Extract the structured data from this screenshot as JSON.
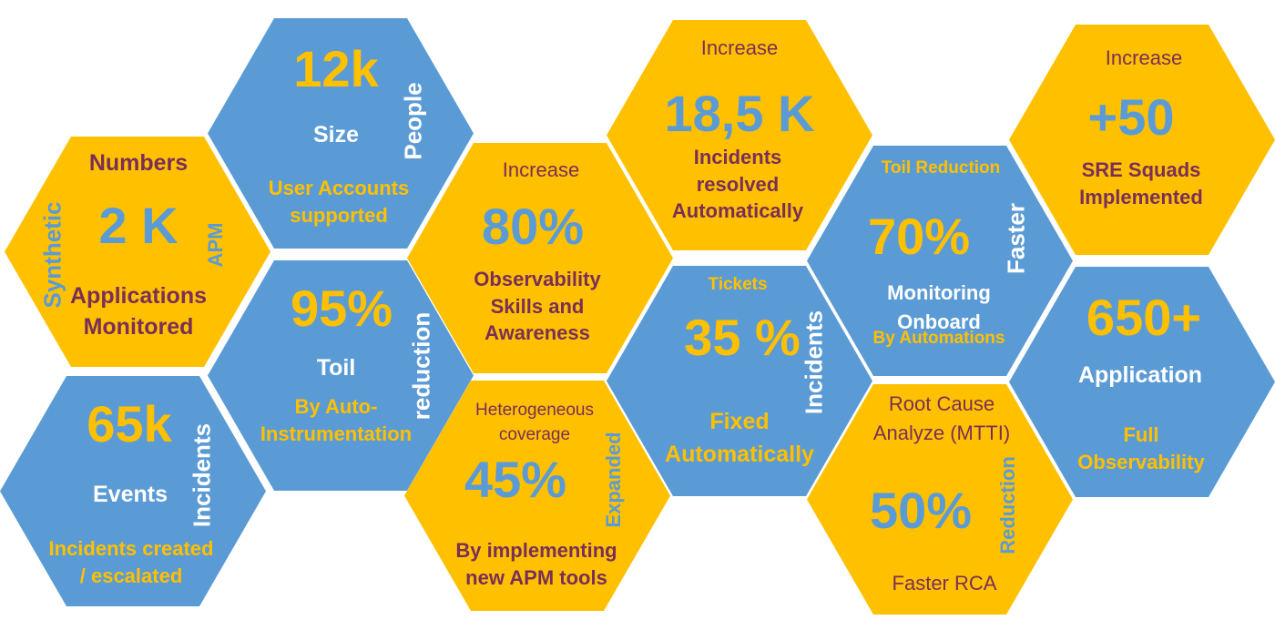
{
  "colors": {
    "blue": "#5b9bd5",
    "gold": "#ffc000",
    "white": "#ffffff",
    "text_dark": "#7a2f57"
  },
  "apm": {
    "top": "Numbers",
    "value": "2 K",
    "bottom_1": "Applications",
    "bottom_2": "Monitored",
    "side_left": "Synthetic",
    "side_right": "APM"
  },
  "size": {
    "value": "12k",
    "label": "Size",
    "sub_1": "User Accounts",
    "sub_2": "supported",
    "side": "People"
  },
  "events": {
    "value": "65k",
    "label": "Events",
    "sub_1": "Incidents created",
    "sub_2": "/ escalated",
    "side": "Incidents"
  },
  "toil": {
    "value": "95%",
    "label": "Toil",
    "sub_1": "By Auto-",
    "sub_2": "Instrumentation",
    "side": "reduction"
  },
  "skills": {
    "top": "Increase",
    "value": "80%",
    "sub_1": "Observability",
    "sub_2": "Skills and",
    "sub_3": "Awareness"
  },
  "coverage": {
    "top_1": "Heterogeneous",
    "top_2": "coverage",
    "value": "45%",
    "sub_1": "By implementing",
    "sub_2": "new APM tools",
    "side": "Expanded"
  },
  "resolved": {
    "top": "Increase",
    "value": "18,5 K",
    "sub_1": "Incidents",
    "sub_2": "resolved",
    "sub_3": "Automatically"
  },
  "tickets": {
    "top": "Tickets",
    "value": "35 %",
    "sub_1": "Fixed",
    "sub_2": "Automatically",
    "side": "Incidents"
  },
  "onboard": {
    "top": "Toil Reduction",
    "value": "70%",
    "sub_1": "Monitoring",
    "sub_2": "Onboard",
    "sub_3": "By Automations",
    "side": "Faster"
  },
  "rca": {
    "top_1": "Root Cause",
    "top_2": "Analyze (MTTI)",
    "value": "50%",
    "sub": "Faster RCA",
    "side": "Reduction"
  },
  "sre": {
    "top": "Increase",
    "value": "+50",
    "sub_1": "SRE Squads",
    "sub_2": "Implemented"
  },
  "apps": {
    "value": "650+",
    "label": "Application",
    "sub_1": "Full",
    "sub_2": "Observability"
  }
}
